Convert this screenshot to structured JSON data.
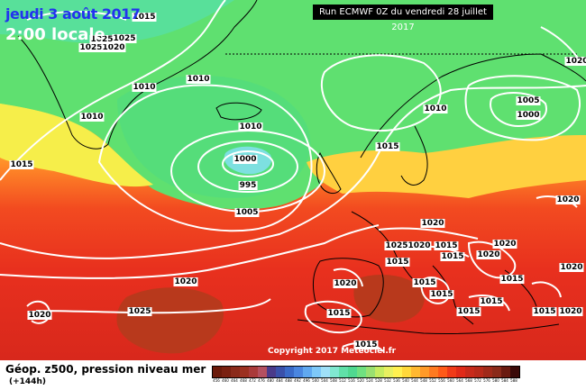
{
  "header": {
    "date": "jeudi 3 août 2017",
    "local_time": "2:00 locale",
    "run": "Run ECMWF 0Z du vendredi 28 juillet 2017"
  },
  "copyright": "Copyright 2017 Meteociel.fr",
  "footer": {
    "title": "Géop. z500, pression niveau mer",
    "forecast": "(+144h)"
  },
  "isobar_labels": [
    "1015",
    "1025",
    "1020",
    "1025",
    "1010",
    "1010",
    "1010",
    "1015",
    "1010",
    "1000",
    "995",
    "1005",
    "1015",
    "1020",
    "1025",
    "1020",
    "1020",
    "1020",
    "1025",
    "1015",
    "1015",
    "1020",
    "1020",
    "1015",
    "1015",
    "1015",
    "1015",
    "1010",
    "1005",
    "1000",
    "1020",
    "1020",
    "1020",
    "1015",
    "1020",
    "1015",
    "1020",
    "1025",
    "1015",
    "1015",
    "1015"
  ],
  "legend": {
    "colors": [
      "#6b1a0a",
      "#7a2010",
      "#8b2a1a",
      "#9c3020",
      "#aa3a3a",
      "#b45060",
      "#4a3a8a",
      "#3a50aa",
      "#3a6ac8",
      "#4a86e0",
      "#60a8f0",
      "#7ec8f8",
      "#9fe0f8",
      "#80e8d0",
      "#60e0a8",
      "#50d890",
      "#70e080",
      "#9ae070",
      "#c6ec60",
      "#e8f060",
      "#fff050",
      "#ffd83a",
      "#ffb830",
      "#ff9a28",
      "#ff7a20",
      "#ff5a18",
      "#f03a18",
      "#e02a18",
      "#c82a1a",
      "#b82a1a",
      "#a02a1a",
      "#8a2a1a",
      "#6a1a10",
      "#3a0a08"
    ],
    "ticks": [
      "456",
      "460",
      "464",
      "468",
      "472",
      "476",
      "480",
      "484",
      "488",
      "492",
      "496",
      "500",
      "504",
      "508",
      "512",
      "516",
      "520",
      "524",
      "528",
      "532",
      "536",
      "540",
      "544",
      "548",
      "552",
      "556",
      "560",
      "564",
      "568",
      "572",
      "576",
      "580",
      "584",
      "588"
    ]
  }
}
